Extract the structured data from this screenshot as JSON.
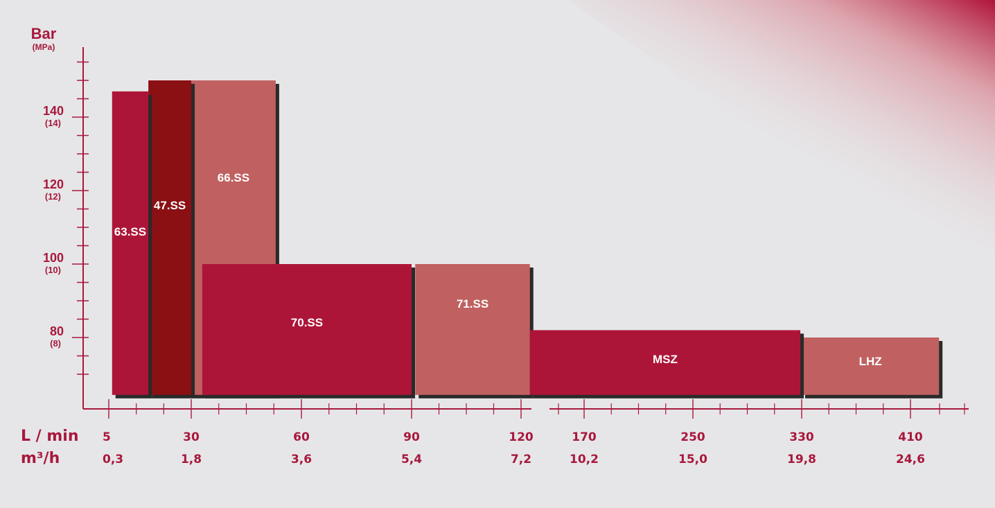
{
  "chart_data": {
    "type": "bar",
    "y_axis": {
      "title": "Bar",
      "subtitle": "(MPa)",
      "range": [
        64,
        154
      ]
    },
    "y_ticks": [
      {
        "value": 140,
        "label": "140",
        "sub": "(14)"
      },
      {
        "value": 120,
        "label": "120",
        "sub": "(12)"
      },
      {
        "value": 100,
        "label": "100",
        "sub": "(10)"
      },
      {
        "value": 80,
        "label": "80",
        "sub": "(8)"
      }
    ],
    "x_axis": {
      "row_labels": [
        "L / min",
        "m³/h"
      ],
      "ticks": [
        {
          "lmin": "5",
          "m3h": "0,3"
        },
        {
          "lmin": "30",
          "m3h": "1,8"
        },
        {
          "lmin": "60",
          "m3h": "3,6"
        },
        {
          "lmin": "90",
          "m3h": "5,4"
        },
        {
          "lmin": "120",
          "m3h": "7,2"
        },
        {
          "lmin": "170",
          "m3h": "10,2"
        },
        {
          "lmin": "250",
          "m3h": "15,0"
        },
        {
          "lmin": "330",
          "m3h": "19,8"
        },
        {
          "lmin": "410",
          "m3h": "24,6"
        }
      ]
    },
    "bars": [
      {
        "label": "66.SS",
        "flow": [
          30,
          53
        ],
        "pressure": 150,
        "color": "#c06060"
      },
      {
        "label": "47.SS",
        "flow": [
          17,
          30
        ],
        "pressure": 150,
        "color": "#8a1014"
      },
      {
        "label": "63.SS",
        "flow": [
          6,
          17
        ],
        "pressure": 147,
        "color": "#ad1538"
      },
      {
        "label": "71.SS",
        "flow": [
          91,
          127
        ],
        "pressure": 100,
        "color": "#c06060"
      },
      {
        "label": "70.SS",
        "flow": [
          33,
          90
        ],
        "pressure": 100,
        "color": "#ad1538"
      },
      {
        "label": "LHZ",
        "flow": [
          330,
          431
        ],
        "pressure": 80,
        "color": "#c06060"
      },
      {
        "label": "MSZ",
        "flow": [
          127,
          329
        ],
        "pressure": 82,
        "color": "#ad1538"
      }
    ],
    "colors": {
      "accent": "#a8183c",
      "shadow": "#2a2a2a",
      "background": "#e6e6e8"
    }
  }
}
